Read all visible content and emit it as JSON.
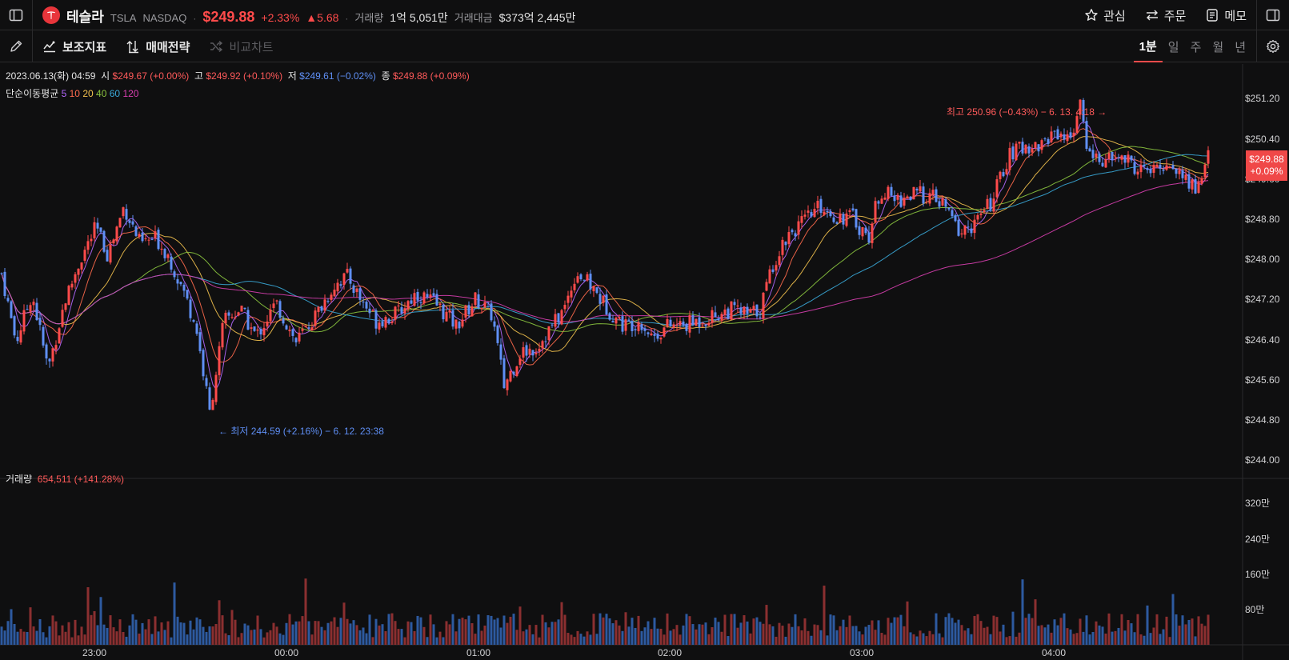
{
  "header": {
    "name": "테슬라",
    "ticker": "TSLA",
    "exchange": "NASDAQ",
    "price": "$249.88",
    "change_pct": "+2.33%",
    "change_abs": "▲5.68",
    "volume_label": "거래량",
    "volume_value": "1억 5,051만",
    "turnover_label": "거래대금",
    "turnover_value": "$373억 2,445만",
    "actions": [
      "관심",
      "주문",
      "메모"
    ]
  },
  "toolbar": {
    "indicators": "보조지표",
    "strategy": "매매전략",
    "compare": "비교차트",
    "periods": [
      "1분",
      "일",
      "주",
      "월",
      "년"
    ],
    "active_period": "1분"
  },
  "info": {
    "datetime": "2023.06.13(화) 04:59",
    "open_label": "시",
    "open": "$249.67 (+0.00%)",
    "high_label": "고",
    "high": "$249.92 (+0.10%)",
    "low_label": "저",
    "low": "$249.61 (−0.02%)",
    "close_label": "종",
    "close": "$249.88 (+0.09%)",
    "ma_label": "단순이동평균",
    "ma_periods": [
      "5",
      "10",
      "20",
      "40",
      "60",
      "120"
    ],
    "volume_label": "거래량",
    "volume_value": "654,511 (+141.28%)"
  },
  "annotations": {
    "high": "최고 250.96 (−0.43%) − 6. 13. 4:18 →",
    "low": "← 최저 244.59 (+2.16%) − 6. 12. 23:38"
  },
  "price_tag": {
    "price": "$249.88",
    "pct": "+0.09%"
  },
  "colors": {
    "up": "#ff4b4b",
    "down": "#5f8ff5",
    "vol_up": "#8b2f30",
    "vol_down": "#2d5aa0",
    "ma": [
      "#b468ff",
      "#ff6a4d",
      "#f2c14e",
      "#8cc63f",
      "#3aa8d8",
      "#d83fb0"
    ]
  },
  "chart_data": {
    "type": "candlestick",
    "price_axis": [
      "$251.20",
      "$250.40",
      "$249.60",
      "$248.80",
      "$248.00",
      "$247.20",
      "$246.40",
      "$245.60",
      "$244.80",
      "$244.00"
    ],
    "volume_axis": [
      "320만",
      "240만",
      "160만",
      "80만"
    ],
    "time_axis": [
      "23:00",
      "00:00",
      "01:00",
      "02:00",
      "03:00",
      "04:00"
    ],
    "ylim": [
      244.0,
      251.6
    ],
    "volume_ylim": [
      0,
      3400000
    ],
    "path": [
      [
        0,
        247.9
      ],
      [
        20,
        246.5
      ],
      [
        40,
        247.4
      ],
      [
        60,
        246.0
      ],
      [
        80,
        247.2
      ],
      [
        100,
        248.0
      ],
      [
        120,
        248.6
      ],
      [
        135,
        248.1
      ],
      [
        155,
        249.0
      ],
      [
        175,
        248.3
      ],
      [
        195,
        248.4
      ],
      [
        210,
        248.1
      ],
      [
        230,
        247.4
      ],
      [
        245,
        246.8
      ],
      [
        262,
        245.2
      ],
      [
        280,
        246.9
      ],
      [
        300,
        247.1
      ],
      [
        320,
        246.6
      ],
      [
        345,
        247.2
      ],
      [
        370,
        246.5
      ],
      [
        395,
        247.0
      ],
      [
        420,
        247.6
      ],
      [
        435,
        247.7
      ],
      [
        450,
        247.3
      ],
      [
        470,
        246.9
      ],
      [
        495,
        247.0
      ],
      [
        520,
        247.4
      ],
      [
        545,
        247.2
      ],
      [
        570,
        246.8
      ],
      [
        595,
        247.3
      ],
      [
        615,
        247.0
      ],
      [
        630,
        245.7
      ],
      [
        650,
        246.3
      ],
      [
        670,
        246.4
      ],
      [
        690,
        246.8
      ],
      [
        705,
        247.1
      ],
      [
        720,
        247.8
      ],
      [
        740,
        247.5
      ],
      [
        760,
        247.1
      ],
      [
        780,
        246.8
      ],
      [
        800,
        246.9
      ],
      [
        815,
        246.6
      ],
      [
        835,
        246.8
      ],
      [
        855,
        246.8
      ],
      [
        875,
        246.9
      ],
      [
        895,
        247.0
      ],
      [
        915,
        247.1
      ],
      [
        935,
        247.0
      ],
      [
        950,
        247.1
      ],
      [
        965,
        247.9
      ],
      [
        985,
        248.5
      ],
      [
        1005,
        248.7
      ],
      [
        1025,
        249.0
      ],
      [
        1045,
        248.8
      ],
      [
        1065,
        248.8
      ],
      [
        1085,
        248.4
      ],
      [
        1100,
        249.3
      ],
      [
        1120,
        249.1
      ],
      [
        1140,
        249.2
      ],
      [
        1160,
        249.2
      ],
      [
        1180,
        249.0
      ],
      [
        1200,
        248.5
      ],
      [
        1220,
        248.7
      ],
      [
        1240,
        249.1
      ],
      [
        1260,
        249.9
      ],
      [
        1280,
        250.1
      ],
      [
        1300,
        250.1
      ],
      [
        1320,
        250.4
      ],
      [
        1335,
        250.2
      ],
      [
        1350,
        250.8
      ],
      [
        1360,
        250.0
      ],
      [
        1380,
        249.8
      ],
      [
        1400,
        249.9
      ],
      [
        1420,
        249.7
      ],
      [
        1440,
        249.6
      ],
      [
        1460,
        249.8
      ],
      [
        1480,
        249.5
      ],
      [
        1495,
        249.3
      ],
      [
        1510,
        249.9
      ]
    ],
    "ma_offsets": [
      0.0,
      0.04,
      0.08,
      0.14,
      0.2,
      0.3
    ]
  }
}
